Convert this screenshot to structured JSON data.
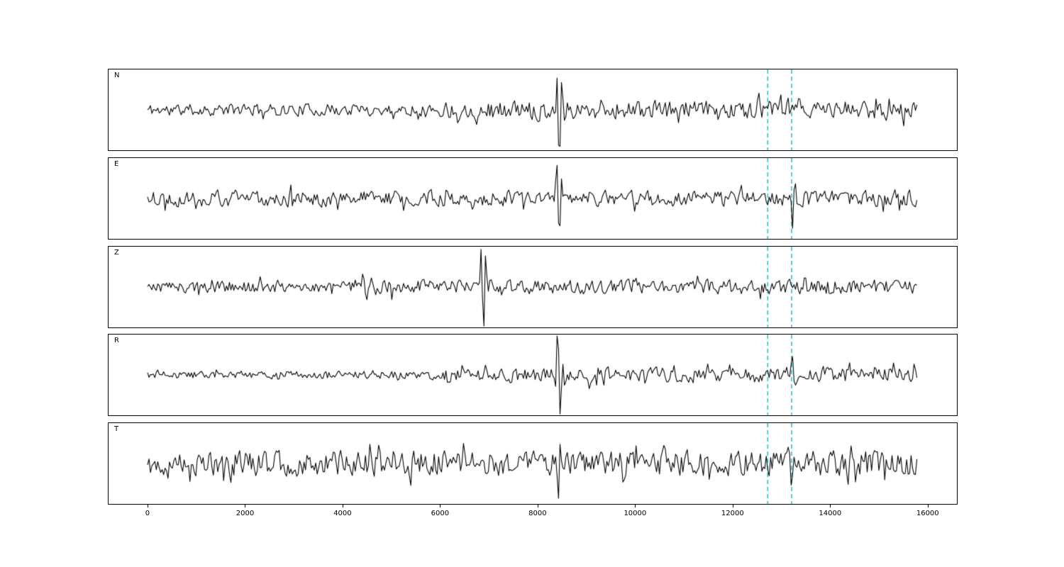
{
  "figure": {
    "background": "#ffffff",
    "trace_color": "#000000"
  },
  "chart_data": {
    "type": "line",
    "title": "",
    "xlabel": "",
    "ylabel": "",
    "description": "Five-panel seismogram record section with components N, E, Z, R, T; black waveform traces with two cyan dashed vertical pick lines",
    "xlim": [
      -800,
      16600
    ],
    "x_ticks": [
      0,
      2000,
      4000,
      6000,
      8000,
      10000,
      12000,
      14000,
      16000
    ],
    "x_tick_labels": [
      "0",
      "2000",
      "4000",
      "6000",
      "8000",
      "10000",
      "12000",
      "14000",
      "16000"
    ],
    "data_x_range": [
      0,
      15800
    ],
    "grid": false,
    "legend": "none",
    "pick_lines": {
      "positions": [
        12720,
        13210
      ],
      "color": "#1fbfbf",
      "style": "dashed"
    },
    "panels": [
      {
        "label": "N",
        "seed": 11,
        "envelope": [
          [
            0,
            0.2
          ],
          [
            5800,
            0.2
          ],
          [
            6300,
            0.3
          ],
          [
            15800,
            0.3
          ]
        ],
        "spikes": [
          {
            "x": 8400,
            "amp": 0.5,
            "w": 50
          },
          {
            "x": 8445,
            "amp": -1.05,
            "w": 60
          },
          {
            "x": 8500,
            "amp": 0.45,
            "w": 60
          },
          {
            "x": 13180,
            "amp": -0.5,
            "w": 60
          }
        ]
      },
      {
        "label": "E",
        "seed": 22,
        "envelope": [
          [
            0,
            0.26
          ],
          [
            15800,
            0.26
          ]
        ],
        "spikes": [
          {
            "x": 8400,
            "amp": 0.55,
            "w": 50
          },
          {
            "x": 8445,
            "amp": -1.0,
            "w": 60
          },
          {
            "x": 13230,
            "amp": -0.75,
            "w": 55
          }
        ]
      },
      {
        "label": "Z",
        "seed": 33,
        "envelope": [
          [
            0,
            0.2
          ],
          [
            4200,
            0.2
          ],
          [
            4400,
            0.42
          ],
          [
            4700,
            0.26
          ],
          [
            4900,
            0.4
          ],
          [
            5150,
            0.22
          ],
          [
            6400,
            0.22
          ],
          [
            15800,
            0.24
          ]
        ],
        "spikes": [
          {
            "x": 4420,
            "amp": 0.55,
            "w": 80
          },
          {
            "x": 6845,
            "amp": 0.5,
            "w": 50
          },
          {
            "x": 6890,
            "amp": -1.0,
            "w": 55
          },
          {
            "x": 6940,
            "amp": 0.5,
            "w": 55
          }
        ]
      },
      {
        "label": "R",
        "seed": 44,
        "envelope": [
          [
            0,
            0.13
          ],
          [
            5600,
            0.13
          ],
          [
            6100,
            0.2
          ],
          [
            8200,
            0.22
          ],
          [
            8800,
            0.25
          ],
          [
            15800,
            0.25
          ]
        ],
        "spikes": [
          {
            "x": 8410,
            "amp": 1.05,
            "w": 55
          },
          {
            "x": 8465,
            "amp": -0.85,
            "w": 55
          },
          {
            "x": 13220,
            "amp": 0.4,
            "w": 60
          }
        ]
      },
      {
        "label": "T",
        "seed": 55,
        "envelope": [
          [
            0,
            0.42
          ],
          [
            15800,
            0.42
          ]
        ],
        "spikes": [
          {
            "x": 8420,
            "amp": -0.8,
            "w": 60
          },
          {
            "x": 8470,
            "amp": 0.6,
            "w": 55
          },
          {
            "x": 13210,
            "amp": -0.55,
            "w": 55
          }
        ]
      }
    ]
  }
}
